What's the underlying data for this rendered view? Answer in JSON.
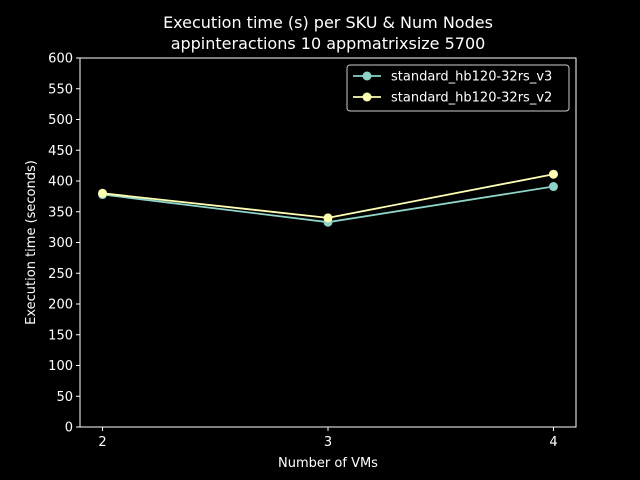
{
  "chart_data": {
    "type": "line",
    "title": "Execution time (s) per SKU & Num Nodes",
    "subtitle": "appinteractions 10 appmatrixsize 5700",
    "xlabel": "Number of VMs",
    "ylabel": "Execution time (seconds)",
    "x": [
      2,
      3,
      4
    ],
    "xticks": [
      "2",
      "3",
      "4"
    ],
    "ylim": [
      0,
      600
    ],
    "yticks": [
      "0",
      "50",
      "100",
      "150",
      "200",
      "250",
      "300",
      "350",
      "400",
      "450",
      "500",
      "550",
      "600"
    ],
    "grid": false,
    "legend_position": "top-right",
    "series": [
      {
        "name": "standard_hb120-32rs_v3",
        "color": "#8dd3c7",
        "values": [
          378,
          333,
          391
        ]
      },
      {
        "name": "standard_hb120-32rs_v2",
        "color": "#ffffb3",
        "values": [
          380,
          340,
          411
        ]
      }
    ]
  }
}
